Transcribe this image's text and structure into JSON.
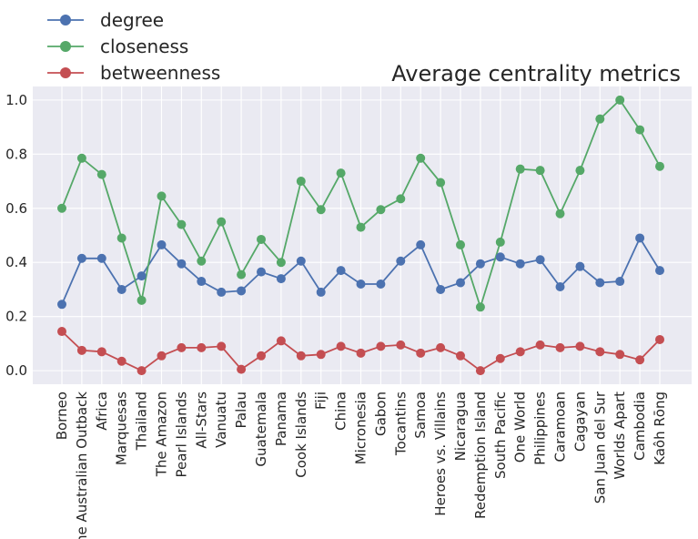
{
  "chart_data": {
    "type": "line",
    "title": "Average centrality metrics",
    "xlabel": "",
    "ylabel": "",
    "ylim": [
      -0.05,
      1.05
    ],
    "yticks": [
      "0.0",
      "0.2",
      "0.4",
      "0.6",
      "0.8",
      "1.0"
    ],
    "grid": true,
    "legend_position": "top-left, above plot",
    "categories": [
      "Borneo",
      "The Australian Outback",
      "Africa",
      "Marquesas",
      "Thailand",
      "The Amazon",
      "Pearl Islands",
      "All-Stars",
      "Vanuatu",
      "Palau",
      "Guatemala",
      "Panama",
      "Cook Islands",
      "Fiji",
      "China",
      "Micronesia",
      "Gabon",
      "Tocantins",
      "Samoa",
      "Heroes vs. Villains",
      "Nicaragua",
      "Redemption Island",
      "South Pacific",
      "One World",
      "Philippines",
      "Caramoan",
      "Cagayan",
      "San Juan del Sur",
      "Worlds Apart",
      "Cambodia",
      "Kaôh Rōng"
    ],
    "series": [
      {
        "name": "degree",
        "color": "#4c72b0",
        "values": [
          0.245,
          0.415,
          0.415,
          0.3,
          0.35,
          0.465,
          0.395,
          0.33,
          0.29,
          0.295,
          0.365,
          0.34,
          0.405,
          0.29,
          0.37,
          0.32,
          0.32,
          0.405,
          0.465,
          0.3,
          0.325,
          0.395,
          0.42,
          0.395,
          0.41,
          0.31,
          0.385,
          0.325,
          0.33,
          0.49,
          0.37
        ]
      },
      {
        "name": "closeness",
        "color": "#55a868",
        "values": [
          0.6,
          0.785,
          0.725,
          0.49,
          0.26,
          0.645,
          0.54,
          0.405,
          0.55,
          0.355,
          0.485,
          0.4,
          0.7,
          0.595,
          0.73,
          0.53,
          0.595,
          0.635,
          0.785,
          0.695,
          0.465,
          0.235,
          0.475,
          0.745,
          0.74,
          0.58,
          0.74,
          0.93,
          1.0,
          0.89,
          0.755
        ]
      },
      {
        "name": "betweenness",
        "color": "#c44e52",
        "values": [
          0.145,
          0.075,
          0.07,
          0.035,
          0.0,
          0.055,
          0.085,
          0.085,
          0.09,
          0.005,
          0.055,
          0.11,
          0.055,
          0.06,
          0.09,
          0.065,
          0.09,
          0.095,
          0.065,
          0.085,
          0.055,
          0.0,
          0.045,
          0.07,
          0.095,
          0.085,
          0.09,
          0.07,
          0.06,
          0.04,
          0.115
        ]
      }
    ]
  }
}
